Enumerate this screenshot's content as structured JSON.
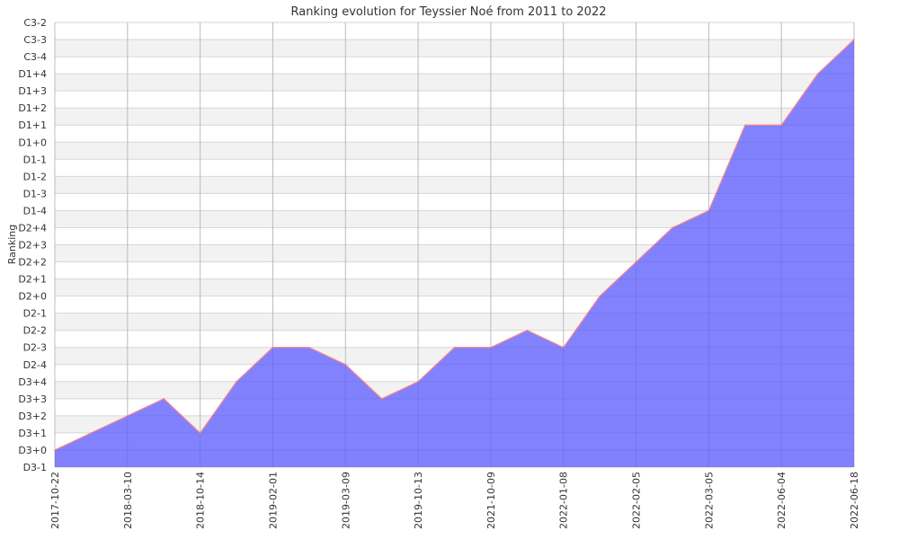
{
  "chart_data": {
    "type": "area",
    "title": "Ranking evolution for Teyssier Noé from 2011 to 2022",
    "xlabel": "",
    "ylabel": "Ranking",
    "x_tick_labels": [
      "2017-10-22",
      "2018-03-10",
      "2018-10-14",
      "2019-02-01",
      "2019-03-09",
      "2019-10-13",
      "2021-10-09",
      "2022-01-08",
      "2022-02-05",
      "2022-03-05",
      "2022-06-04",
      "2022-06-18"
    ],
    "y_levels": [
      "D3-1",
      "D3+0",
      "D3+1",
      "D3+2",
      "D3+3",
      "D3+4",
      "D2-4",
      "D2-3",
      "D2-2",
      "D2-1",
      "D2+0",
      "D2+1",
      "D2+2",
      "D2+3",
      "D2+4",
      "D1-4",
      "D1-3",
      "D1-2",
      "D1-1",
      "D1+0",
      "D1+1",
      "D1+2",
      "D1+3",
      "D1+4",
      "C3-4",
      "C3-3",
      "C3-2"
    ],
    "series": [
      {
        "x_index": [
          0,
          1,
          1.5,
          2,
          2.5,
          3,
          3.5,
          4,
          4.5,
          5,
          5.5,
          6,
          6.5,
          7,
          7.5,
          8,
          8.5,
          9,
          9.5,
          10,
          10.5,
          11
        ],
        "ranking": [
          "D3+0",
          "D3+2",
          "D3+3",
          "D3+1",
          "D3+4",
          "D2-3",
          "D2-3",
          "D2-4",
          "D3+3",
          "D3+4",
          "D2-3",
          "D2-3",
          "D2-2",
          "D2-3",
          "D2+0",
          "D2+2",
          "D2+4",
          "D1-4",
          "D1+1",
          "D1+1",
          "D1+4",
          "C3-3"
        ]
      }
    ],
    "grid": true,
    "colors": {
      "fill": "#7777ff",
      "line": "#ff8888",
      "band": "#f2f2f2",
      "grid": "#cccccc"
    }
  }
}
